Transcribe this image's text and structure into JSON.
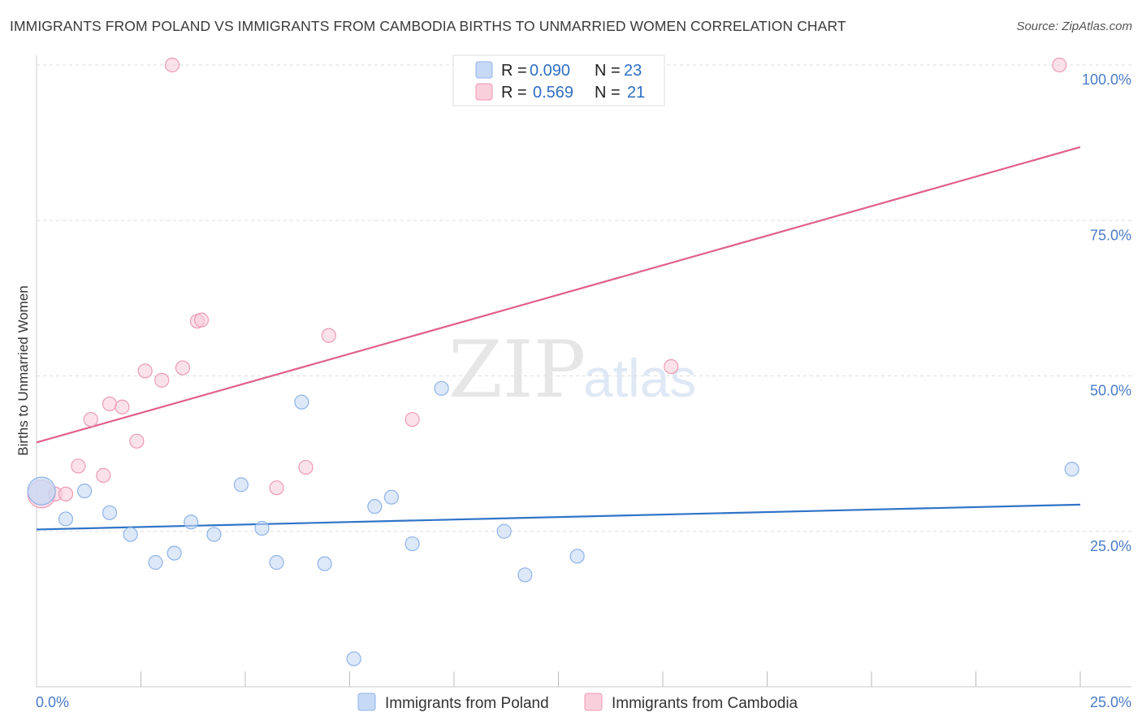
{
  "title": "IMMIGRANTS FROM POLAND VS IMMIGRANTS FROM CAMBODIA BIRTHS TO UNMARRIED WOMEN CORRELATION CHART",
  "source": "Source: ZipAtlas.com",
  "watermark": {
    "zip": "ZIP",
    "atlas": "atlas"
  },
  "colors": {
    "poland_fill": "#c6d9f5",
    "poland_stroke": "#8fb4e8",
    "poland_line": "#2f74c8",
    "cambodia_fill": "#f9cfdc",
    "cambodia_stroke": "#ee9ab4",
    "cambodia_line": "#e0608a",
    "tick_text": "#4a7cc7",
    "grid": "#dddddd"
  },
  "legend_top": [
    {
      "r_label": "R =",
      "r_value": "0.090",
      "n_label": "N =",
      "n_value": "23"
    },
    {
      "r_label": "R =",
      "r_value": "0.569",
      "n_label": "N =",
      "n_value": "21"
    }
  ],
  "chart_data": {
    "type": "scatter",
    "title": "IMMIGRANTS FROM POLAND VS IMMIGRANTS FROM CAMBODIA BIRTHS TO UNMARRIED WOMEN CORRELATION CHART",
    "xlabel": "",
    "ylabel": "Births to Unmarried Women",
    "xlim": [
      0,
      25
    ],
    "ylim": [
      0,
      102
    ],
    "x_tick_labels": [
      "0.0%",
      "25.0%"
    ],
    "y_ticks": [
      25,
      50,
      75,
      100
    ],
    "y_tick_labels": [
      "25.0%",
      "50.0%",
      "75.0%",
      "100.0%"
    ],
    "grid": true,
    "series": [
      {
        "name": "Immigrants from Poland",
        "r": 0.09,
        "n": 23,
        "trend": [
          [
            0,
            25.3
          ],
          [
            25,
            29.3
          ]
        ],
        "points": [
          {
            "x": 0.12,
            "y": 31.5,
            "big": true
          },
          {
            "x": 0.7,
            "y": 27.0
          },
          {
            "x": 1.15,
            "y": 31.5
          },
          {
            "x": 1.75,
            "y": 28.0
          },
          {
            "x": 2.25,
            "y": 24.5
          },
          {
            "x": 2.85,
            "y": 20.0
          },
          {
            "x": 3.3,
            "y": 21.5
          },
          {
            "x": 3.7,
            "y": 26.5
          },
          {
            "x": 4.25,
            "y": 24.5
          },
          {
            "x": 4.9,
            "y": 32.5
          },
          {
            "x": 5.4,
            "y": 25.5
          },
          {
            "x": 5.75,
            "y": 20.0
          },
          {
            "x": 6.35,
            "y": 45.8
          },
          {
            "x": 6.9,
            "y": 19.8
          },
          {
            "x": 7.6,
            "y": 4.5
          },
          {
            "x": 8.1,
            "y": 29.0
          },
          {
            "x": 8.5,
            "y": 30.5
          },
          {
            "x": 9.0,
            "y": 23.0
          },
          {
            "x": 9.7,
            "y": 48.0
          },
          {
            "x": 11.2,
            "y": 25.0
          },
          {
            "x": 11.7,
            "y": 18.0
          },
          {
            "x": 12.95,
            "y": 21.0
          },
          {
            "x": 24.8,
            "y": 35.0
          }
        ]
      },
      {
        "name": "Immigrants from Cambodia",
        "r": 0.569,
        "n": 21,
        "trend": [
          [
            0,
            39.3
          ],
          [
            25,
            86.8
          ]
        ],
        "points": [
          {
            "x": 0.12,
            "y": 31.0,
            "big": true
          },
          {
            "x": 0.45,
            "y": 31.0
          },
          {
            "x": 0.7,
            "y": 31.0
          },
          {
            "x": 1.0,
            "y": 35.5
          },
          {
            "x": 1.3,
            "y": 43.0
          },
          {
            "x": 1.6,
            "y": 34.0
          },
          {
            "x": 1.75,
            "y": 45.5
          },
          {
            "x": 2.05,
            "y": 45.0
          },
          {
            "x": 2.4,
            "y": 39.5
          },
          {
            "x": 2.6,
            "y": 50.8
          },
          {
            "x": 3.0,
            "y": 49.3
          },
          {
            "x": 3.25,
            "y": 100.0
          },
          {
            "x": 3.5,
            "y": 51.3
          },
          {
            "x": 3.85,
            "y": 58.8
          },
          {
            "x": 3.95,
            "y": 59.0
          },
          {
            "x": 5.75,
            "y": 32.0
          },
          {
            "x": 6.45,
            "y": 35.3
          },
          {
            "x": 7.0,
            "y": 56.5
          },
          {
            "x": 9.0,
            "y": 43.0
          },
          {
            "x": 15.2,
            "y": 51.5
          },
          {
            "x": 24.5,
            "y": 100.0
          }
        ]
      }
    ]
  }
}
